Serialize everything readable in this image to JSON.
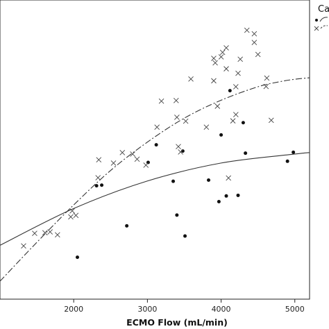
{
  "chart_data": {
    "type": "scatter",
    "title": "",
    "xlabel": "ECMO Flow (mL/min)",
    "ylabel": "",
    "xlim": [
      1000,
      5200
    ],
    "ylim": [
      0,
      100
    ],
    "x_ticks": [
      2000,
      3000,
      4000,
      5000
    ],
    "grid": false,
    "legend": {
      "title": "Ca",
      "placement": "top-right",
      "entries": [
        "dot-solid",
        "cross-dashed"
      ]
    },
    "series": [
      {
        "marker": "dot",
        "line_style": "solid",
        "color": "#111111",
        "points": [
          [
            2050,
            14.0
          ],
          [
            2310,
            37.9
          ],
          [
            2380,
            38.1
          ],
          [
            2720,
            24.5
          ],
          [
            3010,
            45.7
          ],
          [
            3120,
            51.6
          ],
          [
            3350,
            39.4
          ],
          [
            3400,
            28.1
          ],
          [
            3480,
            49.5
          ],
          [
            3510,
            21.1
          ],
          [
            3830,
            39.8
          ],
          [
            3970,
            32.6
          ],
          [
            4000,
            54.9
          ],
          [
            4070,
            34.5
          ],
          [
            4120,
            69.7
          ],
          [
            4230,
            34.7
          ],
          [
            4300,
            59.0
          ],
          [
            4330,
            48.8
          ],
          [
            4900,
            46.1
          ],
          [
            4980,
            49.1
          ]
        ],
        "fit": [
          [
            1000,
            18.0
          ],
          [
            2000,
            30.3
          ],
          [
            3000,
            39.5
          ],
          [
            4000,
            45.5
          ],
          [
            5000,
            48.5
          ],
          [
            5200,
            49.0
          ]
        ]
      },
      {
        "marker": "cross",
        "line_style": "dashed",
        "color": "#111111",
        "points": [
          [
            1320,
            17.8
          ],
          [
            1470,
            22.0
          ],
          [
            1610,
            22.2
          ],
          [
            1680,
            22.5
          ],
          [
            1780,
            21.5
          ],
          [
            1960,
            27.5
          ],
          [
            1980,
            29.5
          ],
          [
            2030,
            28.0
          ],
          [
            2330,
            40.6
          ],
          [
            2340,
            46.6
          ],
          [
            2540,
            45.5
          ],
          [
            2660,
            49.0
          ],
          [
            2800,
            48.5
          ],
          [
            2860,
            46.8
          ],
          [
            2980,
            44.8
          ],
          [
            3130,
            57.5
          ],
          [
            3190,
            66.2
          ],
          [
            3390,
            66.4
          ],
          [
            3400,
            60.8
          ],
          [
            3420,
            51.0
          ],
          [
            3450,
            49.2
          ],
          [
            3520,
            59.5
          ],
          [
            3590,
            73.6
          ],
          [
            3800,
            57.5
          ],
          [
            3900,
            73.0
          ],
          [
            3900,
            80.5
          ],
          [
            3920,
            79.0
          ],
          [
            3950,
            64.5
          ],
          [
            4000,
            81.0
          ],
          [
            4020,
            82.5
          ],
          [
            4070,
            77.0
          ],
          [
            4070,
            84.0
          ],
          [
            4100,
            40.5
          ],
          [
            4160,
            59.6
          ],
          [
            4200,
            71.0
          ],
          [
            4200,
            61.7
          ],
          [
            4230,
            75.5
          ],
          [
            4260,
            80.2
          ],
          [
            4350,
            89.9
          ],
          [
            4450,
            85.8
          ],
          [
            4450,
            88.7
          ],
          [
            4500,
            81.8
          ],
          [
            4610,
            71.1
          ],
          [
            4620,
            73.9
          ],
          [
            4680,
            59.8
          ]
        ],
        "fit": [
          [
            1000,
            6.0
          ],
          [
            1500,
            19.0
          ],
          [
            2000,
            31.5
          ],
          [
            2500,
            43.0
          ],
          [
            3000,
            52.5
          ],
          [
            3500,
            60.5
          ],
          [
            4000,
            66.5
          ],
          [
            4500,
            71.0
          ],
          [
            4800,
            72.7
          ],
          [
            5000,
            73.5
          ],
          [
            5200,
            74.0
          ]
        ]
      }
    ]
  }
}
